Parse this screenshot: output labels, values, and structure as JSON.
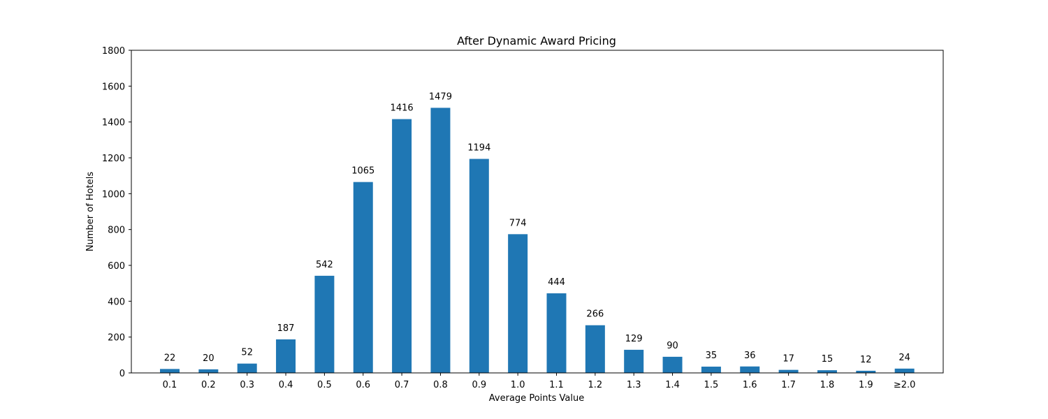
{
  "chart_data": {
    "type": "bar",
    "title": "After Dynamic Award Pricing",
    "xlabel": "Average Points Value",
    "ylabel": "Number of Hotels",
    "categories": [
      "0.1",
      "0.2",
      "0.3",
      "0.4",
      "0.5",
      "0.6",
      "0.7",
      "0.8",
      "0.9",
      "1.0",
      "1.1",
      "1.2",
      "1.3",
      "1.4",
      "1.5",
      "1.6",
      "1.7",
      "1.8",
      "1.9",
      "≥2.0"
    ],
    "values": [
      22,
      20,
      52,
      187,
      542,
      1065,
      1416,
      1479,
      1194,
      774,
      444,
      266,
      129,
      90,
      35,
      36,
      17,
      15,
      12,
      24
    ],
    "data_labels": [
      "22",
      "20",
      "52",
      "187",
      "542",
      "1065",
      "1416",
      "1479",
      "1194",
      "774",
      "444",
      "266",
      "129",
      "90",
      "35",
      "36",
      "17",
      "15",
      "12",
      "24"
    ],
    "ylim": [
      0,
      1800
    ],
    "yticks": [
      0,
      200,
      400,
      600,
      800,
      1000,
      1200,
      1400,
      1600,
      1800
    ],
    "ytick_labels": [
      "0",
      "200",
      "400",
      "600",
      "800",
      "1000",
      "1200",
      "1400",
      "1600",
      "1800"
    ],
    "grid": false,
    "legend": "none",
    "colors": {
      "bar": "#1f77b4",
      "axis": "#000000",
      "text": "#000000"
    }
  }
}
